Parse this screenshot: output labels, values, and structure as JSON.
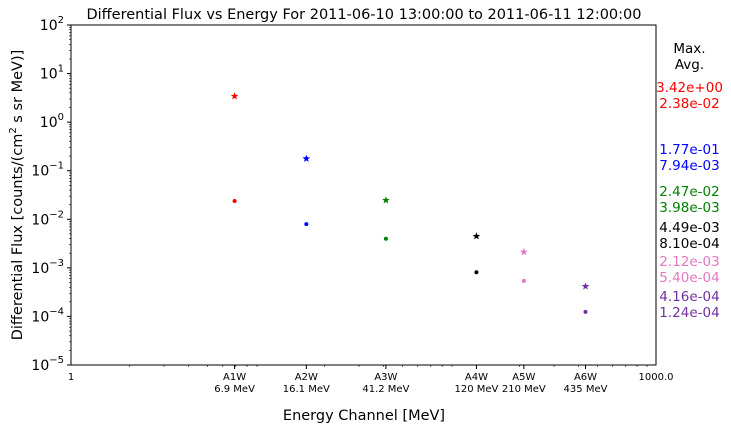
{
  "chart_data": {
    "type": "scatter",
    "title": "Differential Flux vs Energy For 2011-06-10 13:00:00 to 2011-06-11 12:00:00",
    "xlabel": "Energy Channel [MeV]",
    "ylabel_prefix": "Differential Flux [counts/(cm",
    "ylabel_sup": "2",
    "ylabel_suffix": " s sr MeV)]",
    "x_scale": "log",
    "y_scale": "log",
    "xlim": [
      1,
      1000
    ],
    "ylim": [
      1e-05,
      100
    ],
    "x_edge_labels": [
      "1",
      "1000.0"
    ],
    "y_tick_labels": [
      {
        "base": "10",
        "exp": "2",
        "value": 100
      },
      {
        "base": "10",
        "exp": "1",
        "value": 10
      },
      {
        "base": "10",
        "exp": "0",
        "value": 1
      },
      {
        "base": "10",
        "exp": "−1",
        "value": 0.1
      },
      {
        "base": "10",
        "exp": "−2",
        "value": 0.01
      },
      {
        "base": "10",
        "exp": "−3",
        "value": 0.001
      },
      {
        "base": "10",
        "exp": "−4",
        "value": 0.0001
      },
      {
        "base": "10",
        "exp": "−5",
        "value": 1e-05
      }
    ],
    "legend_header": [
      "Max.",
      "Avg."
    ],
    "channels": [
      {
        "name": "A1W",
        "energy_label": "6.9 MeV",
        "energy": 6.9,
        "max": 3.42,
        "avg": 0.0238,
        "max_label": "3.42e+00",
        "avg_label": "2.38e-02",
        "color": "#ff0000"
      },
      {
        "name": "A2W",
        "energy_label": "16.1 MeV",
        "energy": 16.1,
        "max": 0.177,
        "avg": 0.00794,
        "max_label": "1.77e-01",
        "avg_label": "7.94e-03",
        "color": "#0000ff"
      },
      {
        "name": "A3W",
        "energy_label": "41.2 MeV",
        "energy": 41.2,
        "max": 0.0247,
        "avg": 0.00398,
        "max_label": "2.47e-02",
        "avg_label": "3.98e-03",
        "color": "#008000"
      },
      {
        "name": "A4W",
        "energy_label": "120 MeV",
        "energy": 120,
        "max": 0.00449,
        "avg": 0.00081,
        "max_label": "4.49e-03",
        "avg_label": "8.10e-04",
        "color": "#000000"
      },
      {
        "name": "A5W",
        "energy_label": "210 MeV",
        "energy": 210,
        "max": 0.00212,
        "avg": 0.00054,
        "max_label": "2.12e-03",
        "avg_label": "5.40e-04",
        "color": "#e377c2"
      },
      {
        "name": "A6W",
        "energy_label": "435 MeV",
        "energy": 435,
        "max": 0.000416,
        "avg": 0.000124,
        "max_label": "4.16e-04",
        "avg_label": "1.24e-04",
        "color": "#7030a0"
      }
    ]
  }
}
